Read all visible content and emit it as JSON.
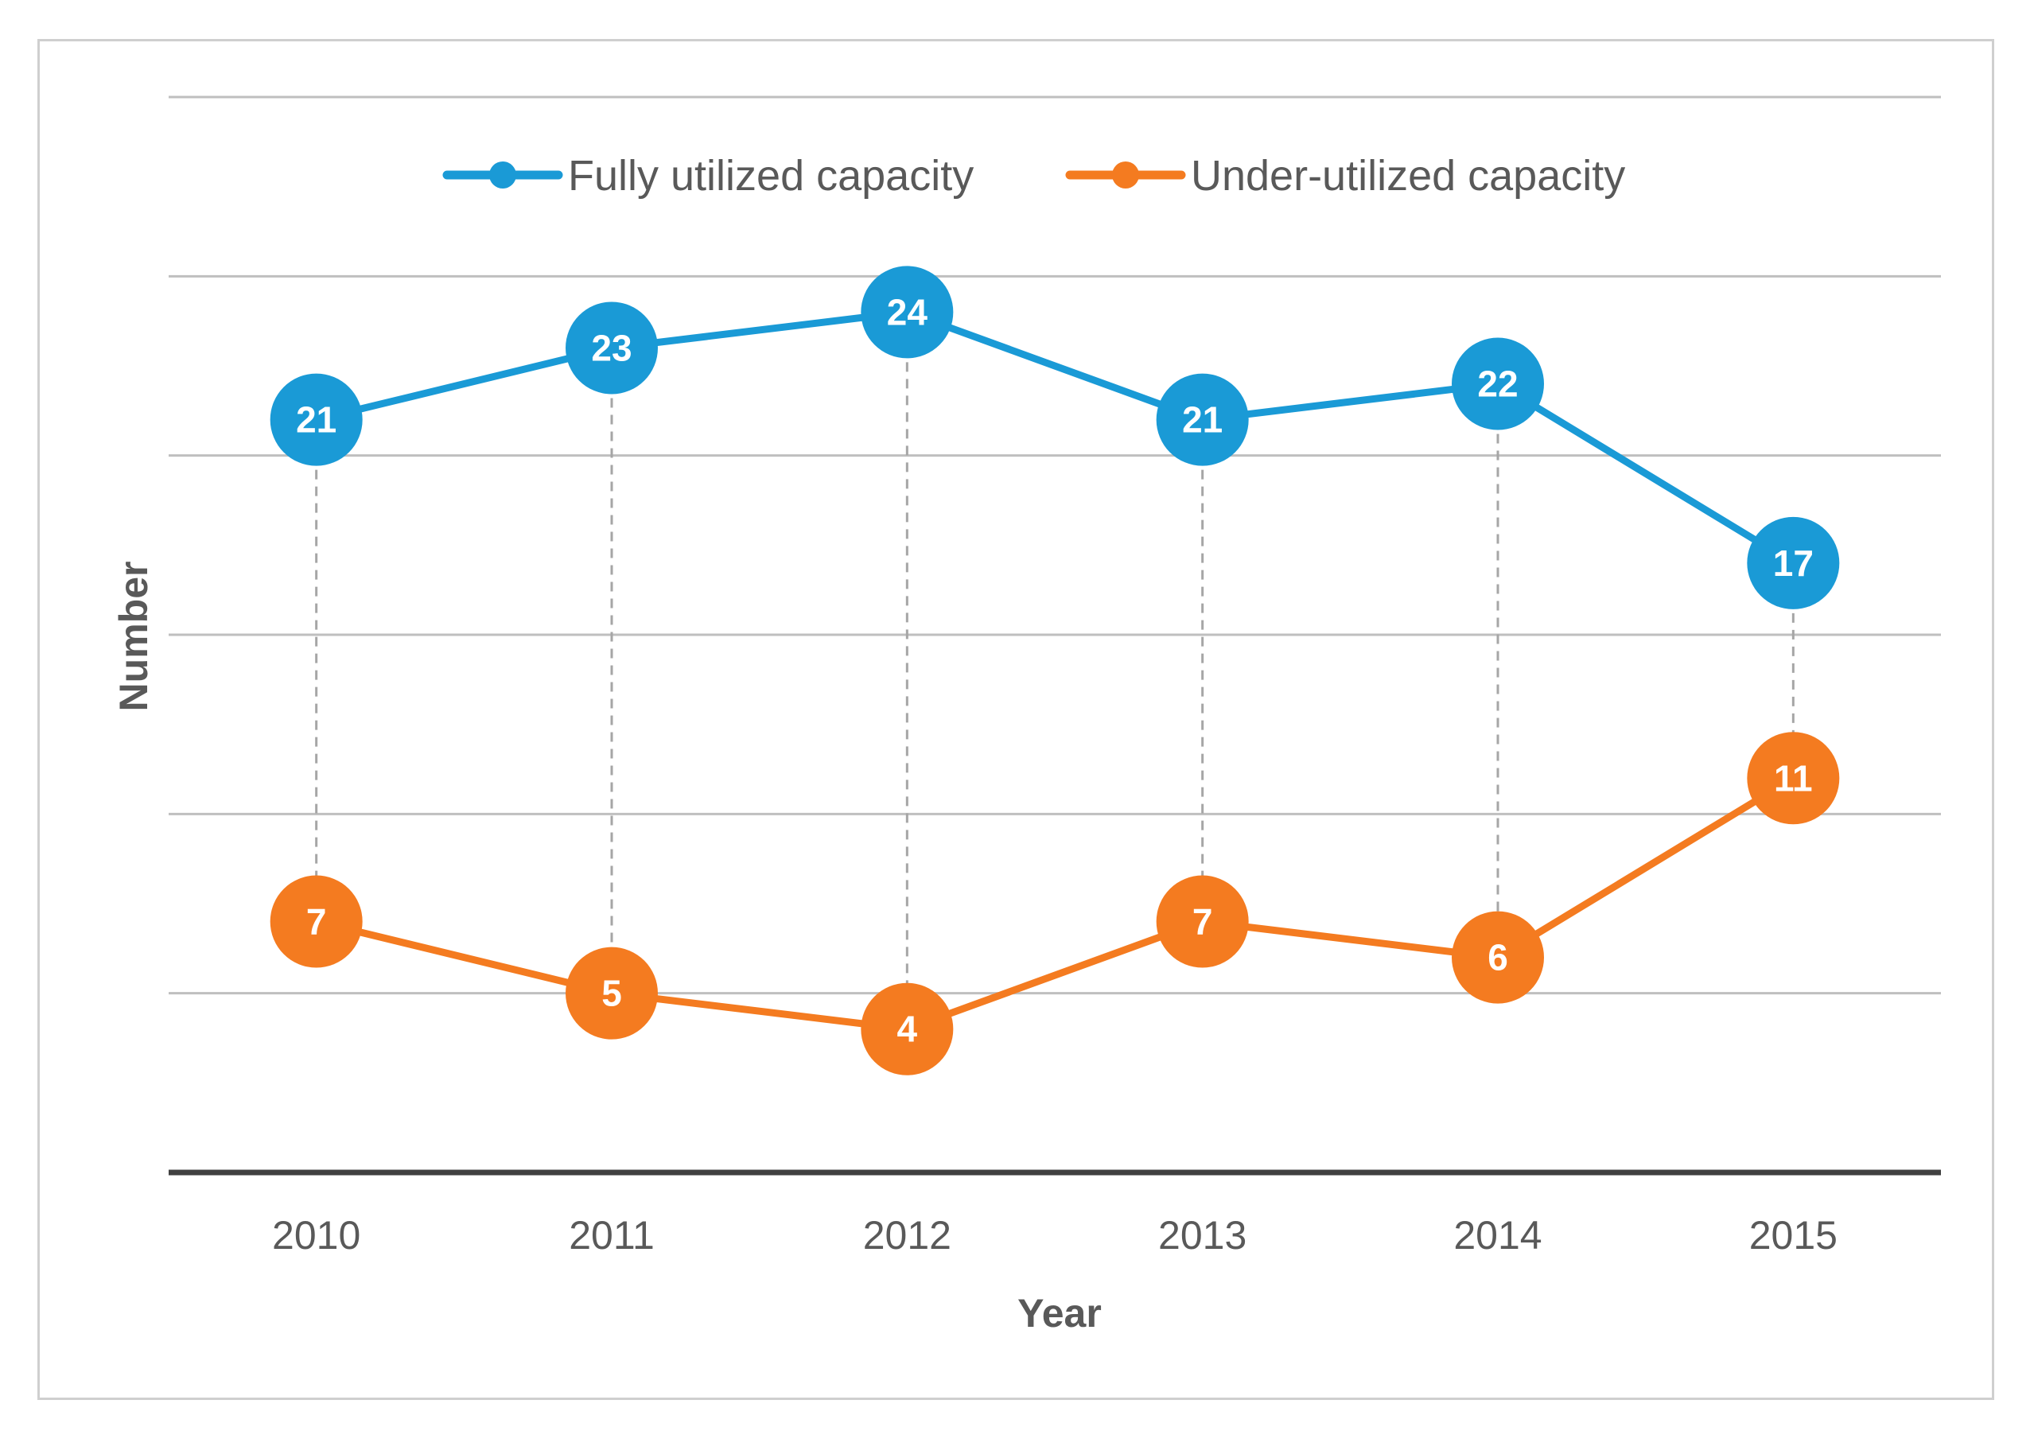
{
  "chart_data": {
    "type": "line",
    "title": "",
    "xlabel": "Year",
    "ylabel": "Number",
    "categories": [
      "2010",
      "2011",
      "2012",
      "2013",
      "2014",
      "2015"
    ],
    "ylim": [
      0,
      30
    ],
    "grid": true,
    "legend_position": "top-center",
    "drop_lines": true,
    "series": [
      {
        "name": "Fully utilized capacity",
        "color": "#1a9ad6",
        "values": [
          21,
          23,
          24,
          21,
          22,
          17
        ]
      },
      {
        "name": "Under-utilized capacity",
        "color": "#f47b20",
        "values": [
          7,
          5,
          4,
          7,
          6,
          11
        ]
      }
    ]
  }
}
